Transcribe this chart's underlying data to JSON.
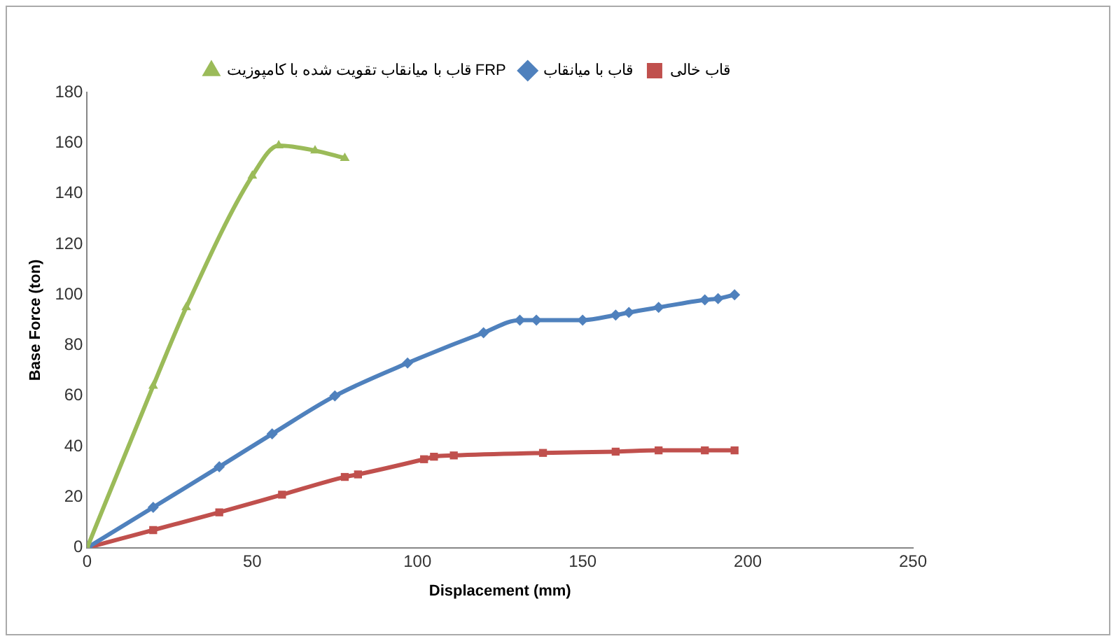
{
  "chart_data": {
    "type": "line",
    "xlabel": "Displacement (mm)",
    "ylabel": "Base Force (ton)",
    "xlim": [
      0,
      250
    ],
    "xticks": [
      0,
      50,
      100,
      150,
      200,
      250
    ],
    "ylim": [
      0,
      180
    ],
    "yticks": [
      0,
      20,
      40,
      60,
      80,
      100,
      120,
      140,
      160,
      180
    ],
    "grid": false,
    "legend": "top",
    "series": [
      {
        "name": "قاب با میانقاب تقویت شده با کامپوزیت FRP",
        "color": "#9bbb59",
        "marker": "triangle",
        "x": [
          0,
          20,
          30,
          50,
          58,
          69,
          78
        ],
        "values": [
          0,
          64,
          95,
          147,
          159,
          157,
          154
        ]
      },
      {
        "name": "قاب با میانقاب",
        "color": "#4f81bd",
        "marker": "diamond",
        "x": [
          0,
          20,
          40,
          56,
          75,
          97,
          120,
          131,
          136,
          150,
          160,
          164,
          173,
          187,
          191,
          196
        ],
        "values": [
          0,
          16,
          32,
          45,
          60,
          73,
          85,
          90,
          90,
          90,
          92,
          93,
          95,
          98,
          98.5,
          100
        ]
      },
      {
        "name": "قاب خالی",
        "color": "#c0504d",
        "marker": "square",
        "x": [
          0,
          20,
          40,
          59,
          78,
          82,
          102,
          105,
          111,
          138,
          160,
          173,
          187,
          196
        ],
        "values": [
          0,
          7,
          14,
          21,
          28,
          29,
          35,
          36,
          36.5,
          37.5,
          38,
          38.5,
          38.5,
          38.5
        ]
      }
    ]
  }
}
